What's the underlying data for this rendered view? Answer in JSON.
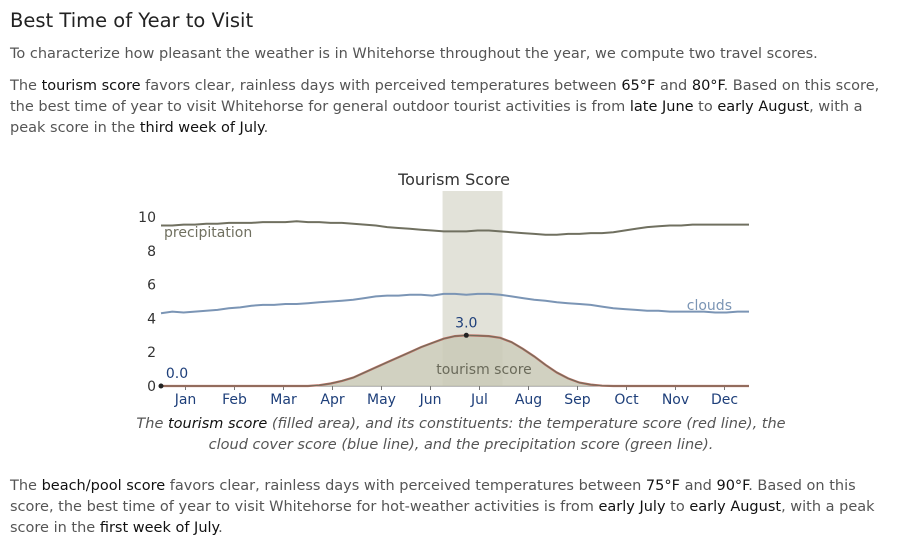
{
  "heading": "Best Time of Year to Visit",
  "intro": "To characterize how pleasant the weather is in Whitehorse throughout the year, we compute two travel scores.",
  "para2": {
    "t1": "The ",
    "b1": "tourism score",
    "t2": " favors clear, rainless days with perceived temperatures between ",
    "b2": "65°F",
    "t3": " and ",
    "b3": "80°F",
    "t4": ". Based on this score, the best time of year to visit Whitehorse for general outdoor tourist activities is from ",
    "b4": "late June",
    "t5": " to ",
    "b5": "early August",
    "t6": ", with a peak score in the ",
    "b6": "third week of July",
    "t7": "."
  },
  "caption": {
    "t1": "The ",
    "b1": "tourism score",
    "t2": " (filled area), and its constituents: the temperature score (red line), the cloud cover score (blue line), and the precipitation score (green line)."
  },
  "para3": {
    "t1": "The ",
    "b1": "beach/pool score",
    "t2": " favors clear, rainless days with perceived temperatures between ",
    "b2": "75°F",
    "t3": " and ",
    "b3": "90°F",
    "t4": ". Based on this score, the best time of year to visit Whitehorse for hot-weather activities is from ",
    "b4": "early July",
    "t5": " to ",
    "b5": "early August",
    "t6": ", with a peak score in the ",
    "b6": "first week of July",
    "t7": "."
  },
  "chart_data": {
    "type": "area",
    "title": "Tourism Score",
    "x_unit": "week of year",
    "xlim": [
      0,
      52
    ],
    "ylim": [
      0,
      10
    ],
    "y_ticks": [
      0,
      2,
      4,
      6,
      8,
      10
    ],
    "months": [
      "Jan",
      "Feb",
      "Mar",
      "Apr",
      "May",
      "Jun",
      "Jul",
      "Aug",
      "Sep",
      "Oct",
      "Nov",
      "Dec"
    ],
    "highlight": {
      "x_start": 24.9,
      "x_end": 30.2
    },
    "series": [
      {
        "name": "precipitation",
        "color": "#707060",
        "x": [
          0,
          1,
          2,
          3,
          4,
          5,
          6,
          7,
          8,
          9,
          10,
          11,
          12,
          13,
          14,
          15,
          16,
          17,
          18,
          19,
          20,
          21,
          22,
          23,
          24,
          25,
          26,
          27,
          28,
          29,
          30,
          31,
          32,
          33,
          34,
          35,
          36,
          37,
          38,
          39,
          40,
          41,
          42,
          43,
          44,
          45,
          46,
          47,
          48,
          49,
          50,
          51,
          52
        ],
        "values": [
          9.5,
          9.5,
          9.55,
          9.55,
          9.6,
          9.6,
          9.65,
          9.65,
          9.65,
          9.7,
          9.7,
          9.7,
          9.75,
          9.7,
          9.7,
          9.65,
          9.65,
          9.6,
          9.55,
          9.5,
          9.4,
          9.35,
          9.3,
          9.25,
          9.2,
          9.15,
          9.15,
          9.15,
          9.2,
          9.2,
          9.15,
          9.1,
          9.05,
          9.0,
          8.95,
          8.95,
          9.0,
          9.0,
          9.05,
          9.05,
          9.1,
          9.2,
          9.3,
          9.4,
          9.45,
          9.5,
          9.5,
          9.55,
          9.55,
          9.55,
          9.55,
          9.55,
          9.55
        ]
      },
      {
        "name": "clouds",
        "color": "#7b95b5",
        "x": [
          0,
          1,
          2,
          3,
          4,
          5,
          6,
          7,
          8,
          9,
          10,
          11,
          12,
          13,
          14,
          15,
          16,
          17,
          18,
          19,
          20,
          21,
          22,
          23,
          24,
          25,
          26,
          27,
          28,
          29,
          30,
          31,
          32,
          33,
          34,
          35,
          36,
          37,
          38,
          39,
          40,
          41,
          42,
          43,
          44,
          45,
          46,
          47,
          48,
          49,
          50,
          51,
          52
        ],
        "values": [
          4.3,
          4.4,
          4.35,
          4.4,
          4.45,
          4.5,
          4.6,
          4.65,
          4.75,
          4.8,
          4.8,
          4.85,
          4.85,
          4.9,
          4.95,
          5.0,
          5.05,
          5.1,
          5.2,
          5.3,
          5.35,
          5.35,
          5.4,
          5.4,
          5.35,
          5.45,
          5.45,
          5.4,
          5.45,
          5.45,
          5.4,
          5.3,
          5.2,
          5.1,
          5.05,
          4.95,
          4.9,
          4.85,
          4.8,
          4.7,
          4.6,
          4.55,
          4.5,
          4.45,
          4.45,
          4.4,
          4.4,
          4.4,
          4.4,
          4.35,
          4.35,
          4.4,
          4.4
        ]
      },
      {
        "name": "tourism score",
        "color": "#c9c9b6",
        "x": [
          0,
          1,
          2,
          3,
          4,
          5,
          6,
          7,
          8,
          9,
          10,
          11,
          12,
          13,
          14,
          15,
          16,
          17,
          18,
          19,
          20,
          21,
          22,
          23,
          24,
          25,
          26,
          27,
          28,
          29,
          30,
          31,
          32,
          33,
          34,
          35,
          36,
          37,
          38,
          39,
          40,
          41,
          42,
          43,
          44,
          45,
          46,
          47,
          48,
          49,
          50,
          51,
          52
        ],
        "values": [
          0,
          0,
          0,
          0,
          0,
          0,
          0,
          0,
          0,
          0,
          0,
          0,
          0,
          0,
          0.05,
          0.15,
          0.3,
          0.5,
          0.8,
          1.1,
          1.4,
          1.7,
          2.0,
          2.3,
          2.55,
          2.8,
          2.95,
          3.0,
          2.98,
          2.95,
          2.85,
          2.6,
          2.2,
          1.75,
          1.25,
          0.8,
          0.45,
          0.2,
          0.08,
          0.02,
          0,
          0,
          0,
          0,
          0,
          0,
          0,
          0,
          0,
          0,
          0,
          0,
          0
        ]
      }
    ],
    "annotations": [
      {
        "text": "0.0",
        "x": 0,
        "y": 0
      },
      {
        "text": "3.0",
        "x": 27,
        "y": 3.0
      }
    ]
  }
}
